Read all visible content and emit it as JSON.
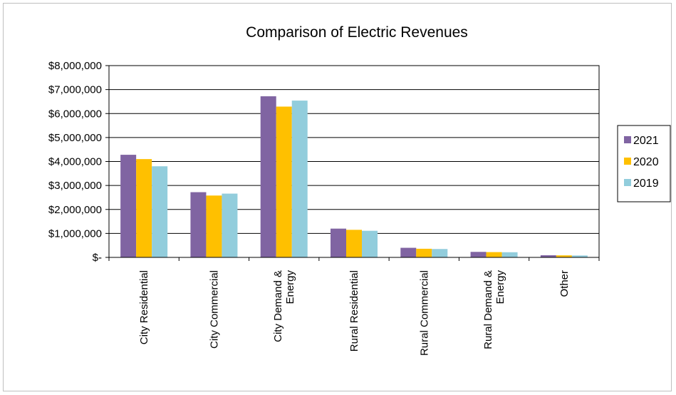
{
  "chart_data": {
    "type": "bar",
    "title": "Comparison of Electric Revenues",
    "xlabel": "",
    "ylabel": "",
    "ylim": [
      0,
      8000000
    ],
    "yticks": [
      0,
      1000000,
      2000000,
      3000000,
      4000000,
      5000000,
      6000000,
      7000000,
      8000000
    ],
    "ytick_labels": [
      "$-",
      "$1,000,000",
      "$2,000,000",
      "$3,000,000",
      "$4,000,000",
      "$5,000,000",
      "$6,000,000",
      "$7,000,000",
      "$8,000,000"
    ],
    "grid": true,
    "legend_position": "right",
    "categories": [
      [
        "City Residential"
      ],
      [
        "City Commercial"
      ],
      [
        "City Demand &",
        "Energy"
      ],
      [
        "Rural Residential"
      ],
      [
        "Rural Commercial"
      ],
      [
        "Rural Demand &",
        "Energy"
      ],
      [
        "Other"
      ]
    ],
    "series": [
      {
        "name": "2021",
        "color": "#8064a2",
        "values": [
          4280000,
          2720000,
          6720000,
          1200000,
          400000,
          230000,
          90000
        ]
      },
      {
        "name": "2020",
        "color": "#ffc000",
        "values": [
          4100000,
          2580000,
          6290000,
          1150000,
          360000,
          220000,
          85000
        ]
      },
      {
        "name": "2019",
        "color": "#92cddc",
        "values": [
          3800000,
          2660000,
          6540000,
          1110000,
          350000,
          215000,
          80000
        ]
      }
    ]
  }
}
